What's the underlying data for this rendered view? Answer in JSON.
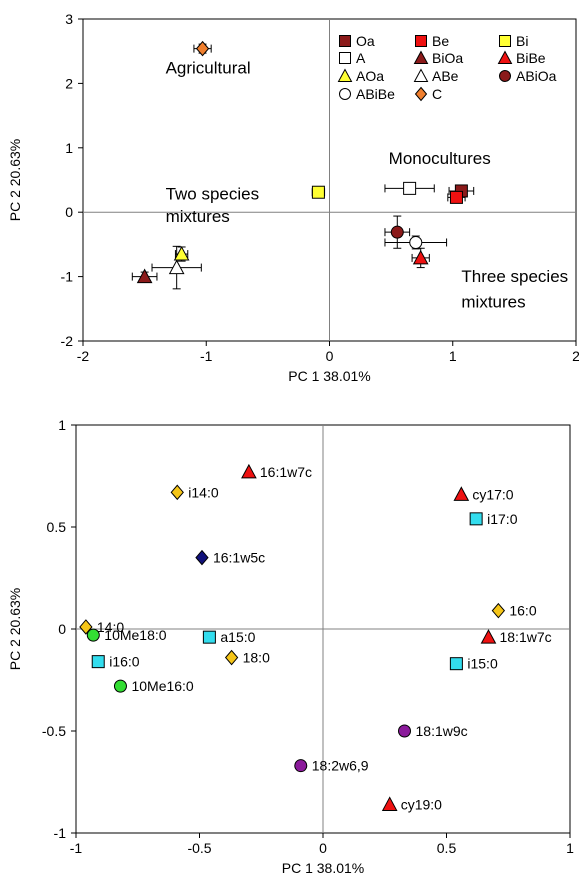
{
  "chart_data": [
    {
      "type": "scatter",
      "xlabel": "PC 1   38.01%",
      "ylabel": "PC 2   20.63%",
      "xlim": [
        -2,
        2
      ],
      "ylim": [
        -2,
        3
      ],
      "xticks": [
        -2,
        -1,
        0,
        1,
        2
      ],
      "yticks": [
        -2,
        -1,
        0,
        1,
        2,
        3
      ],
      "grid": false,
      "legend_position": "top-right",
      "annotations": [
        {
          "text": "Agricultural",
          "x": -1.33,
          "y": 2.15
        },
        {
          "text": "Monocultures",
          "x": 0.48,
          "y": 0.75
        },
        {
          "text": "Two species",
          "x": -1.33,
          "y": 0.2
        },
        {
          "text": "mixtures",
          "x": -1.33,
          "y": -0.15
        },
        {
          "text": "Three species",
          "x": 1.07,
          "y": -1.08
        },
        {
          "text": "mixtures",
          "x": 1.07,
          "y": -1.48
        }
      ],
      "series": [
        {
          "name": "Oa",
          "marker": "square",
          "color": "#8B1A1A",
          "x": 1.07,
          "y": 0.33,
          "xerr": 0.1,
          "yerr": 0.06
        },
        {
          "name": "Be",
          "marker": "square",
          "color": "#EE1111",
          "x": 1.03,
          "y": 0.23,
          "xerr": 0.07,
          "yerr": 0.06
        },
        {
          "name": "Bi",
          "marker": "square",
          "color": "#FFFF33",
          "x": -0.09,
          "y": 0.31,
          "xerr": 0.05,
          "yerr": 0.05
        },
        {
          "name": "A",
          "marker": "square",
          "color": "#FFFFFF",
          "x": 0.65,
          "y": 0.37,
          "xerr": 0.2,
          "yerr": 0.05
        },
        {
          "name": "BiOa",
          "marker": "triangle",
          "color": "#8B1A1A",
          "x": -1.5,
          "y": -1.0,
          "xerr": 0.1,
          "yerr": 0.07
        },
        {
          "name": "BiBe",
          "marker": "triangle",
          "color": "#EE1111",
          "x": 0.74,
          "y": -0.71,
          "xerr": 0.07,
          "yerr": 0.15
        },
        {
          "name": "AOa",
          "marker": "triangle",
          "color": "#FFFF33",
          "x": -1.2,
          "y": -0.65,
          "xerr": 0.05,
          "yerr": 0.11
        },
        {
          "name": "ABe",
          "marker": "triangle",
          "color": "#FFFFFF",
          "x": -1.24,
          "y": -0.86,
          "xerr": 0.2,
          "yerr": 0.33
        },
        {
          "name": "ABiOa",
          "marker": "circle",
          "color": "#8B1A1A",
          "x": 0.55,
          "y": -0.31,
          "xerr": 0.1,
          "yerr": 0.25
        },
        {
          "name": "ABiBe",
          "marker": "circle",
          "color": "#FFFFFF",
          "x": 0.7,
          "y": -0.47,
          "xerr": 0.25,
          "yerr": 0.1
        },
        {
          "name": "C",
          "marker": "diamond",
          "color": "#F07F2E",
          "x": -1.03,
          "y": 2.54,
          "xerr": 0.07,
          "yerr": 0.07
        }
      ]
    },
    {
      "type": "scatter",
      "xlabel": "PC 1   38.01%",
      "ylabel": "PC 2   20.63%",
      "xlim": [
        -1,
        1
      ],
      "ylim": [
        -1,
        1
      ],
      "xticks": [
        -1,
        -0.5,
        0,
        0.5,
        1
      ],
      "yticks": [
        -1,
        -0.5,
        0,
        0.5,
        1
      ],
      "xtick_labels": [
        "-1",
        "-0.5",
        "0",
        "0.5",
        "1"
      ],
      "ytick_labels": [
        "-1",
        "-0.5",
        "0",
        "0.5",
        "1"
      ],
      "grid": false,
      "points": [
        {
          "label": "16:1w7c",
          "marker": "triangle",
          "color": "#EE1111",
          "x": -0.3,
          "y": 0.77
        },
        {
          "label": "i14:0",
          "marker": "diamond",
          "color": "#F5C518",
          "x": -0.59,
          "y": 0.67
        },
        {
          "label": "16:1w5c",
          "marker": "diamond",
          "color": "#11117A",
          "x": -0.49,
          "y": 0.35
        },
        {
          "label": "cy17:0",
          "marker": "triangle",
          "color": "#EE1111",
          "x": 0.56,
          "y": 0.66
        },
        {
          "label": "i17:0",
          "marker": "square",
          "color": "#33DDEE",
          "x": 0.62,
          "y": 0.54
        },
        {
          "label": "14:0",
          "marker": "diamond",
          "color": "#F5C518",
          "x": -0.96,
          "y": 0.01
        },
        {
          "label": "10Me18:0",
          "marker": "circle",
          "color": "#33DD33",
          "x": -0.93,
          "y": -0.03
        },
        {
          "label": "a15:0",
          "marker": "square",
          "color": "#33DDEE",
          "x": -0.46,
          "y": -0.04
        },
        {
          "label": "i16:0",
          "marker": "square",
          "color": "#33DDEE",
          "x": -0.91,
          "y": -0.16
        },
        {
          "label": "18:0",
          "marker": "diamond",
          "color": "#F5C518",
          "x": -0.37,
          "y": -0.14
        },
        {
          "label": "10Me16:0",
          "marker": "circle",
          "color": "#33DD33",
          "x": -0.82,
          "y": -0.28
        },
        {
          "label": "16:0",
          "marker": "diamond",
          "color": "#F5C518",
          "x": 0.71,
          "y": 0.09
        },
        {
          "label": "18:1w7c",
          "marker": "triangle",
          "color": "#EE1111",
          "x": 0.67,
          "y": -0.04
        },
        {
          "label": "i15:0",
          "marker": "square",
          "color": "#33DDEE",
          "x": 0.54,
          "y": -0.17
        },
        {
          "label": "18:1w9c",
          "marker": "circle",
          "color": "#8B1A9B",
          "x": 0.33,
          "y": -0.5
        },
        {
          "label": "18:2w6,9",
          "marker": "circle",
          "color": "#8B1A9B",
          "x": -0.09,
          "y": -0.67
        },
        {
          "label": "cy19:0",
          "marker": "triangle",
          "color": "#EE1111",
          "x": 0.27,
          "y": -0.86
        }
      ]
    }
  ]
}
